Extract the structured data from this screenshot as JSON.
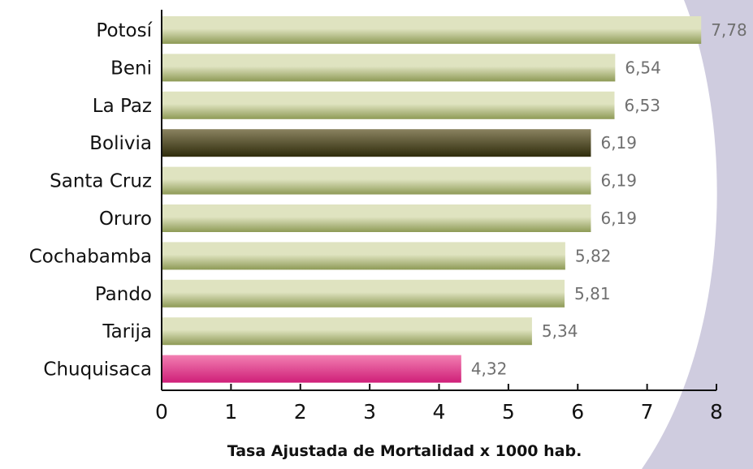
{
  "chart_data": {
    "type": "bar",
    "orientation": "horizontal",
    "categories": [
      "Potosí",
      "Beni",
      "La Paz",
      "Bolivia",
      "Santa Cruz",
      "Oruro",
      "Cochabamba",
      "Pando",
      "Tarija",
      "Chuquisaca"
    ],
    "values": [
      7.78,
      6.54,
      6.53,
      6.19,
      6.19,
      6.19,
      5.82,
      5.81,
      5.34,
      4.32
    ],
    "value_labels": [
      "7,78",
      "6,54",
      "6,53",
      "6,19",
      "6,19",
      "6,19",
      "5,82",
      "5,81",
      "5,34",
      "4,32"
    ],
    "bar_styles": [
      "normal",
      "normal",
      "normal",
      "highlight-dark",
      "normal",
      "normal",
      "normal",
      "normal",
      "normal",
      "highlight-pink"
    ],
    "xlabel": "Tasa Ajustada de Mortalidad x 1000 hab.",
    "xlim": [
      0,
      8
    ],
    "xticks": [
      "0",
      "1",
      "2",
      "3",
      "4",
      "5",
      "6",
      "7",
      "8"
    ],
    "grid": false,
    "colors": {
      "normal_top": "#dfe3c0",
      "normal_bottom": "#8e9a56",
      "dark_top": "#8a8260",
      "dark_bottom": "#2f2c0b",
      "pink_top": "#f27fb2",
      "pink_bottom": "#cf1f78",
      "background_shape": "#cfccdf"
    }
  }
}
